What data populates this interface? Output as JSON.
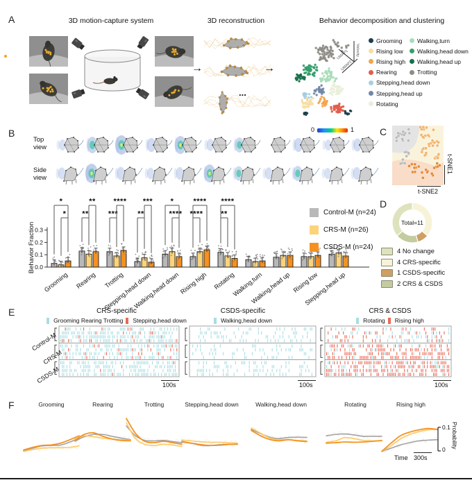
{
  "panel_labels": {
    "A": "A",
    "B": "B",
    "C": "C",
    "D": "D",
    "E": "E",
    "F": "F"
  },
  "panelA": {
    "title_capture": "3D motion-capture system",
    "title_recon": "3D reconstruction",
    "title_cluster": "Behavior decomposition and clustering",
    "ellipsis": "...",
    "arrow": "→",
    "axes": {
      "velocity": "Velocity",
      "umap1": "UMAP1",
      "umap2": "UMAP2"
    },
    "legend_col1": [
      {
        "label": "Grooming",
        "color": "#1f3d4e"
      },
      {
        "label": "Rising low",
        "color": "#f8dda2"
      },
      {
        "label": "Rising high",
        "color": "#f2a54e"
      },
      {
        "label": "Rearing",
        "color": "#e25d4b"
      },
      {
        "label": "Stepping,head down",
        "color": "#a7cfe0"
      },
      {
        "label": "Stepping,head up",
        "color": "#7287ab"
      },
      {
        "label": "Rotating",
        "color": "#e9efd9"
      }
    ],
    "legend_col2": [
      {
        "label": "Walking,turn",
        "color": "#a9dcb8"
      },
      {
        "label": "Walking,head down",
        "color": "#35a06c"
      },
      {
        "label": "Walking,head up",
        "color": "#17704c"
      },
      {
        "label": "Trotting",
        "color": "#8e8c86"
      }
    ]
  },
  "panelB": {
    "top_view": "Top\nview",
    "side_view": "Side\nview",
    "colorbar": {
      "min": "0",
      "max": "1"
    },
    "legend": [
      {
        "label": "Control-M (n=24)",
        "color": "#b8b8b8"
      },
      {
        "label": "CRS-M (n=26)",
        "color": "#fbd37b"
      },
      {
        "label": "CSDS-M (n=24)",
        "color": "#f59120"
      }
    ]
  },
  "panelC": {
    "ylabel": "t-SNE1",
    "xlabel": "t-SNE2"
  },
  "panelD": {
    "center_label": "Total=11",
    "legend": [
      {
        "label": "4 No change",
        "color": "#dee3bd"
      },
      {
        "label": "4 CRS-specific",
        "color": "#f7f3d8"
      },
      {
        "label": "1 CSDS-specific",
        "color": "#cf9f63"
      },
      {
        "label": "2 CRS & CSDS",
        "color": "#c3cba0"
      }
    ]
  },
  "panelE": {
    "row_labels": [
      "Control-M",
      "CRS-M",
      "CSDS-M"
    ],
    "groups": [
      {
        "title": "CRS-specific",
        "legend": [
          {
            "label": "Grooming Rearing Trotting",
            "color": "#a9dde2"
          },
          {
            "label": "Stepping,head down",
            "color": "#e96a55"
          }
        ],
        "scale_bar": "100s",
        "densities": [
          {
            "blue": 0.5,
            "red": 0.05
          },
          {
            "blue": 0.38,
            "red": 0.08
          },
          {
            "blue": 0.52,
            "red": 0.03
          }
        ]
      },
      {
        "title": "CSDS-specific",
        "legend": [
          {
            "label": "Walking,head down",
            "color": "#a9dde2"
          }
        ],
        "scale_bar": "100s",
        "densities": [
          {
            "blue": 0.22,
            "red": 0
          },
          {
            "blue": 0.17,
            "red": 0
          },
          {
            "blue": 0.24,
            "red": 0
          }
        ]
      },
      {
        "title": "CRS & CSDS",
        "legend": [
          {
            "label": "Rotating",
            "color": "#a9dde2"
          },
          {
            "label": "Rising high",
            "color": "#e96a55"
          }
        ],
        "scale_bar": "100s",
        "densities": [
          {
            "blue": 0.16,
            "red": 0.17
          },
          {
            "blue": 0.11,
            "red": 0.4
          },
          {
            "blue": 0.13,
            "red": 0.47
          }
        ]
      }
    ]
  },
  "panelF": {
    "time_label": "Time",
    "time_bar": "300s",
    "prob_label": "Probability",
    "prob_top": "0.1",
    "prob_bottom": "0"
  },
  "chart_data": [
    {
      "id": "behavior-fraction-bars",
      "type": "bar",
      "ylabel": "Behavior Fraction",
      "ylim": [
        0,
        0.35
      ],
      "yticks": [
        "0.0",
        "0.1",
        "0.2",
        "0.3"
      ],
      "categories": [
        "Grooming",
        "Rearing",
        "Trotting",
        "Stepping,head down",
        "Walking,head down",
        "Rising high",
        "Rotating",
        "Walking,turn",
        "Walking,head up",
        "Rising low",
        "Stepping,head up"
      ],
      "series": [
        {
          "name": "Control-M (n=24)",
          "color": "#b8b8b8",
          "values": [
            0.03,
            0.13,
            0.125,
            0.045,
            0.105,
            0.085,
            0.12,
            0.06,
            0.08,
            0.085,
            0.105
          ]
        },
        {
          "name": "CRS-M (n=26)",
          "color": "#fbd37b",
          "values": [
            0.018,
            0.105,
            0.09,
            0.075,
            0.125,
            0.125,
            0.09,
            0.045,
            0.095,
            0.085,
            0.115
          ]
        },
        {
          "name": "CSDS-M (n=24)",
          "color": "#f59120",
          "values": [
            0.05,
            0.125,
            0.135,
            0.04,
            0.085,
            0.14,
            0.07,
            0.05,
            0.095,
            0.095,
            0.09
          ]
        }
      ],
      "significance": [
        {
          "cat": 0,
          "pair": [
            0,
            2
          ],
          "stars": "*",
          "level": "outer"
        },
        {
          "cat": 0,
          "pair": [
            1,
            2
          ],
          "stars": "*",
          "level": "inner"
        },
        {
          "cat": 1,
          "pair": [
            0,
            1
          ],
          "stars": "**",
          "level": "inner"
        },
        {
          "cat": 1,
          "pair": [
            1,
            2
          ],
          "stars": "**",
          "level": "outer"
        },
        {
          "cat": 2,
          "pair": [
            0,
            1
          ],
          "stars": "***",
          "level": "inner"
        },
        {
          "cat": 2,
          "pair": [
            1,
            2
          ],
          "stars": "****",
          "level": "outer"
        },
        {
          "cat": 3,
          "pair": [
            0,
            1
          ],
          "stars": "**",
          "level": "inner"
        },
        {
          "cat": 3,
          "pair": [
            1,
            2
          ],
          "stars": "***",
          "level": "outer"
        },
        {
          "cat": 4,
          "pair": [
            0,
            2
          ],
          "stars": "*",
          "level": "outer"
        },
        {
          "cat": 4,
          "pair": [
            1,
            2
          ],
          "stars": "****",
          "level": "inner"
        },
        {
          "cat": 5,
          "pair": [
            0,
            2
          ],
          "stars": "****",
          "level": "outer"
        },
        {
          "cat": 5,
          "pair": [
            0,
            1
          ],
          "stars": "****",
          "level": "inner"
        },
        {
          "cat": 6,
          "pair": [
            0,
            2
          ],
          "stars": "****",
          "level": "outer"
        },
        {
          "cat": 6,
          "pair": [
            0,
            1
          ],
          "stars": "**",
          "level": "inner"
        }
      ]
    },
    {
      "id": "behavior-change-donut",
      "type": "pie",
      "center_label": "Total=11",
      "slices": [
        {
          "label": "4 CRS-specific",
          "value": 4,
          "color": "#f7f3d8"
        },
        {
          "label": "1 CSDS-specific",
          "value": 1,
          "color": "#cf9f63"
        },
        {
          "label": "2 CRS & CSDS",
          "value": 2,
          "color": "#c3cba0"
        },
        {
          "label": "4 No change",
          "value": 4,
          "color": "#dee3bd"
        }
      ]
    },
    {
      "id": "behavior-probability-curves",
      "type": "line",
      "ylabel": "Probability",
      "yticks": [
        "0",
        "0.1"
      ],
      "xscale": {
        "label": "Time",
        "bar": "300s"
      },
      "series_colors": {
        "control": "#a3a3a3",
        "crs": "#fbc96a",
        "csds": "#f59120"
      },
      "subplots": [
        {
          "title": "Grooming",
          "control": [
            0.008,
            0.018,
            0.028,
            0.03,
            0.032,
            0.045,
            0.062
          ],
          "crs": [
            0.004,
            0.012,
            0.018,
            0.02,
            0.02,
            0.022,
            0.028
          ],
          "csds": [
            0.01,
            0.022,
            0.03,
            0.032,
            0.04,
            0.055,
            0.072
          ]
        },
        {
          "title": "Rearing",
          "control": [
            0.048,
            0.068,
            0.078,
            0.078,
            0.07,
            0.062,
            0.055
          ],
          "crs": [
            0.058,
            0.072,
            0.068,
            0.062,
            0.058,
            0.055,
            0.053
          ],
          "csds": [
            0.052,
            0.078,
            0.085,
            0.07,
            0.058,
            0.052,
            0.05
          ]
        },
        {
          "title": "Trotting",
          "control": [
            0.115,
            0.072,
            0.052,
            0.05,
            0.052,
            0.047,
            0.042
          ],
          "crs": [
            0.128,
            0.06,
            0.035,
            0.03,
            0.035,
            0.032,
            0.025
          ],
          "csds": [
            0.148,
            0.082,
            0.048,
            0.042,
            0.048,
            0.042,
            0.035
          ]
        },
        {
          "title": "Stepping,head down",
          "control": [
            0.045,
            0.04,
            0.031,
            0.029,
            0.033,
            0.035,
            0.035
          ],
          "crs": [
            0.054,
            0.05,
            0.046,
            0.044,
            0.044,
            0.042,
            0.04
          ],
          "csds": [
            0.048,
            0.04,
            0.034,
            0.03,
            0.031,
            0.034,
            0.036
          ]
        },
        {
          "title": "Walking,head down",
          "control": [
            0.1,
            0.082,
            0.066,
            0.06,
            0.065,
            0.066,
            0.065
          ],
          "crs": [
            0.106,
            0.084,
            0.062,
            0.055,
            0.056,
            0.052,
            0.05
          ],
          "csds": [
            0.096,
            0.072,
            0.056,
            0.05,
            0.055,
            0.05,
            0.047
          ]
        },
        {
          "title": "Rotating",
          "control": [
            0.072,
            0.078,
            0.08,
            0.076,
            0.07,
            0.07,
            0.07
          ],
          "crs": [
            0.044,
            0.05,
            0.064,
            0.06,
            0.052,
            0.05,
            0.05
          ],
          "csds": [
            0.04,
            0.042,
            0.045,
            0.044,
            0.045,
            0.048,
            0.052
          ]
        },
        {
          "title": "Rising high",
          "control": [
            0.004,
            0.018,
            0.032,
            0.042,
            0.05,
            0.053,
            0.055
          ],
          "crs": [
            0.004,
            0.028,
            0.058,
            0.078,
            0.09,
            0.098,
            0.1
          ],
          "csds": [
            0.004,
            0.04,
            0.072,
            0.088,
            0.098,
            0.104,
            0.1
          ]
        }
      ]
    }
  ]
}
